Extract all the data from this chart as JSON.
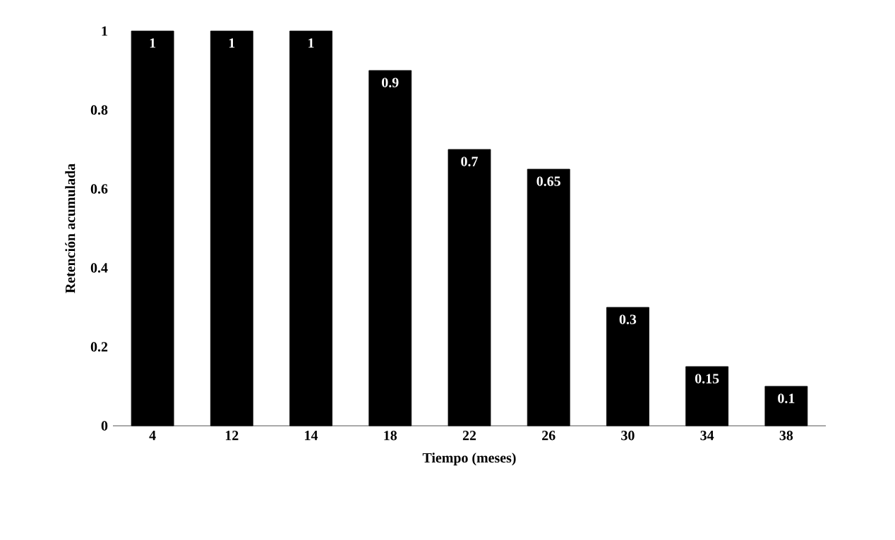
{
  "chart_data": {
    "type": "bar",
    "xlabel": "Tiempo (meses)",
    "ylabel": "Retención acumulada",
    "categories": [
      "4",
      "12",
      "14",
      "18",
      "22",
      "26",
      "30",
      "34",
      "38"
    ],
    "values": [
      1,
      1,
      1,
      0.9,
      0.7,
      0.65,
      0.3,
      0.15,
      0.1
    ],
    "color": "#000000",
    "ylim": [
      0,
      1
    ],
    "yticks": [
      0,
      0.2,
      0.4,
      0.6,
      0.8,
      1
    ],
    "data_labels": true
  }
}
